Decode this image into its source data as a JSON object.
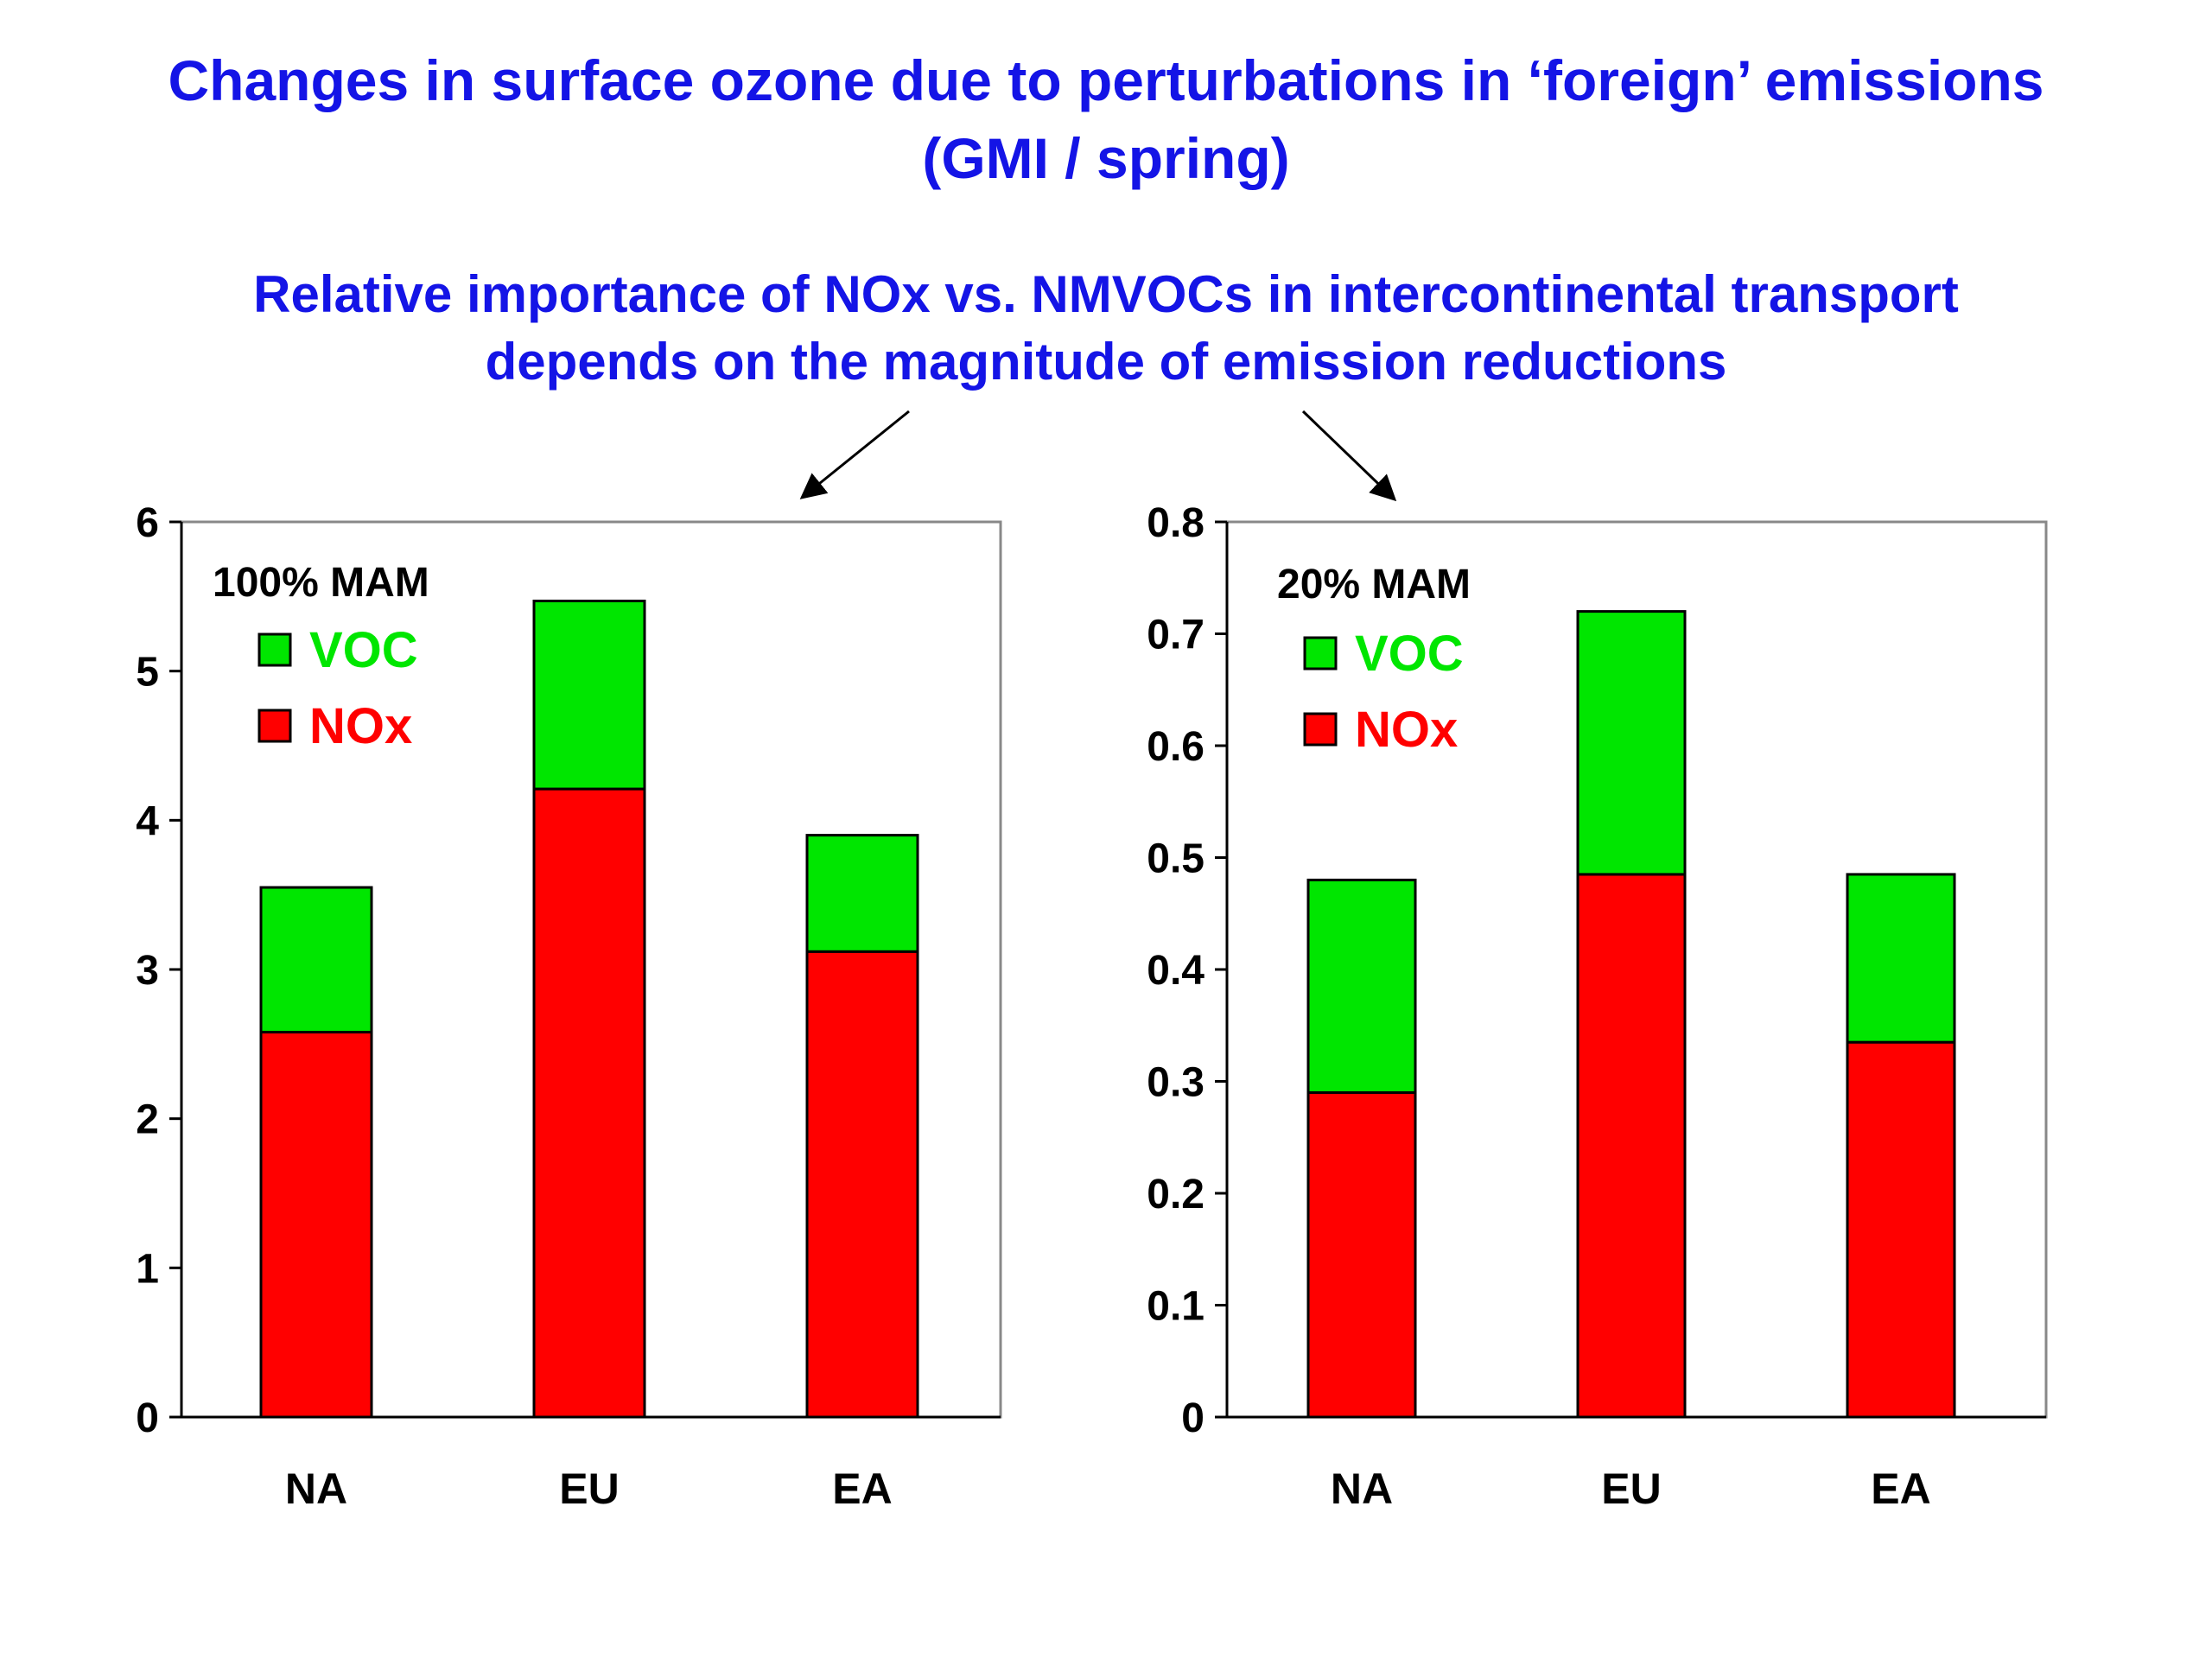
{
  "header": {
    "title_line1": "Changes in surface ozone due to perturbations in ‘foreign’ emissions",
    "title_line2": "(GMI / spring)"
  },
  "annotation": {
    "line1": "Relative importance of NOx vs. NMVOCs in intercontinental transport",
    "line2": "depends on the magnitude of emission reductions"
  },
  "colors": {
    "title": "#1414e6",
    "voc": "#00e600",
    "nox": "#ff0000",
    "frame": "#888888"
  },
  "chart_data": [
    {
      "type": "bar",
      "stacked": true,
      "title": "100% MAM",
      "categories": [
        "NA",
        "EU",
        "EA"
      ],
      "series": [
        {
          "name": "NOx",
          "color": "#ff0000",
          "values": [
            2.58,
            4.21,
            3.12
          ]
        },
        {
          "name": "VOC",
          "color": "#00e600",
          "values": [
            0.97,
            1.26,
            0.78
          ]
        }
      ],
      "ylim": [
        0,
        6
      ],
      "yticks": [
        "0",
        "1",
        "2",
        "3",
        "4",
        "5",
        "6"
      ],
      "legend": [
        "VOC",
        "NOx"
      ],
      "legend_position": "top-left",
      "grid": false
    },
    {
      "type": "bar",
      "stacked": true,
      "title": "20% MAM",
      "categories": [
        "NA",
        "EU",
        "EA"
      ],
      "series": [
        {
          "name": "NOx",
          "color": "#ff0000",
          "values": [
            0.29,
            0.485,
            0.335
          ]
        },
        {
          "name": "VOC",
          "color": "#00e600",
          "values": [
            0.19,
            0.235,
            0.15
          ]
        }
      ],
      "ylim": [
        0,
        0.8
      ],
      "yticks": [
        "0",
        "0.1",
        "0.2",
        "0.3",
        "0.4",
        "0.5",
        "0.6",
        "0.7",
        "0.8"
      ],
      "legend": [
        "VOC",
        "NOx"
      ],
      "legend_position": "top-left",
      "grid": false
    }
  ]
}
